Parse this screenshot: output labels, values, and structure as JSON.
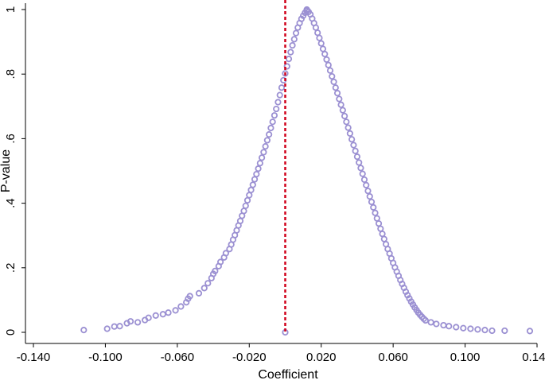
{
  "chart_data": {
    "type": "scatter",
    "xlabel": "Coefficient",
    "ylabel": "P-value",
    "xlim": [
      -0.14,
      0.14
    ],
    "ylim": [
      0,
      1
    ],
    "x_ticks": [
      -0.14,
      -0.1,
      -0.06,
      -0.02,
      0.02,
      0.06,
      0.1,
      0.14
    ],
    "x_tick_labels": [
      "-0.140",
      "-0.100",
      "-0.060",
      "-0.020",
      "0.020",
      "0.060",
      "0.100",
      "0.140"
    ],
    "y_ticks": [
      0,
      0.2,
      0.4,
      0.6,
      0.8,
      1
    ],
    "y_tick_labels": [
      "0",
      ".2",
      ".4",
      ".6",
      ".8",
      "1"
    ],
    "reference_line_x": 0.0,
    "reference_line_style": "dashed",
    "grid": false,
    "colors": {
      "marker": "#9B90D2",
      "reference_line": "#D0021B",
      "axis": "#000000"
    },
    "series": [
      {
        "points": [
          [
            -0.112,
            0.007
          ],
          [
            -0.099,
            0.011
          ],
          [
            -0.095,
            0.018
          ],
          [
            -0.092,
            0.019
          ],
          [
            -0.088,
            0.028
          ],
          [
            -0.086,
            0.034
          ],
          [
            -0.082,
            0.031
          ],
          [
            -0.078,
            0.038
          ],
          [
            -0.076,
            0.045
          ],
          [
            -0.072,
            0.052
          ],
          [
            -0.068,
            0.056
          ],
          [
            -0.065,
            0.061
          ],
          [
            -0.061,
            0.068
          ],
          [
            -0.058,
            0.08
          ],
          [
            -0.055,
            0.093
          ],
          [
            -0.054,
            0.104
          ],
          [
            -0.053,
            0.112
          ],
          [
            -0.048,
            0.121
          ],
          [
            -0.045,
            0.137
          ],
          [
            -0.043,
            0.152
          ],
          [
            -0.041,
            0.168
          ],
          [
            -0.04,
            0.181
          ],
          [
            -0.039,
            0.19
          ],
          [
            -0.037,
            0.205
          ],
          [
            -0.036,
            0.218
          ],
          [
            -0.034,
            0.232
          ],
          [
            -0.033,
            0.245
          ],
          [
            -0.031,
            0.258
          ],
          [
            -0.03,
            0.272
          ],
          [
            -0.029,
            0.287
          ],
          [
            -0.028,
            0.301
          ],
          [
            -0.027,
            0.316
          ],
          [
            -0.026,
            0.331
          ],
          [
            -0.025,
            0.345
          ],
          [
            -0.024,
            0.361
          ],
          [
            -0.023,
            0.376
          ],
          [
            -0.022,
            0.392
          ],
          [
            -0.021,
            0.409
          ],
          [
            -0.02,
            0.425
          ],
          [
            -0.019,
            0.441
          ],
          [
            -0.018,
            0.457
          ],
          [
            -0.017,
            0.474
          ],
          [
            -0.016,
            0.49
          ],
          [
            -0.015,
            0.507
          ],
          [
            -0.014,
            0.524
          ],
          [
            -0.013,
            0.541
          ],
          [
            -0.012,
            0.558
          ],
          [
            -0.011,
            0.576
          ],
          [
            -0.01,
            0.595
          ],
          [
            -0.009,
            0.613
          ],
          [
            -0.008,
            0.633
          ],
          [
            -0.007,
            0.652
          ],
          [
            -0.006,
            0.672
          ],
          [
            -0.005,
            0.692
          ],
          [
            -0.004,
            0.713
          ],
          [
            -0.003,
            0.735
          ],
          [
            -0.002,
            0.758
          ],
          [
            -0.001,
            0.781
          ],
          [
            0.0,
            0.802
          ],
          [
            0.001,
            0.824
          ],
          [
            0.002,
            0.847
          ],
          [
            0.003,
            0.868
          ],
          [
            0.004,
            0.889
          ],
          [
            0.005,
            0.908
          ],
          [
            0.006,
            0.927
          ],
          [
            0.007,
            0.944
          ],
          [
            0.008,
            0.958
          ],
          [
            0.009,
            0.971
          ],
          [
            0.01,
            0.981
          ],
          [
            0.011,
            0.99
          ],
          [
            0.012,
            0.996
          ],
          [
            0.012,
            1.0
          ],
          [
            0.013,
            0.993
          ],
          [
            0.014,
            0.985
          ],
          [
            0.015,
            0.972
          ],
          [
            0.016,
            0.958
          ],
          [
            0.017,
            0.944
          ],
          [
            0.018,
            0.928
          ],
          [
            0.019,
            0.912
          ],
          [
            0.02,
            0.895
          ],
          [
            0.021,
            0.878
          ],
          [
            0.022,
            0.862
          ],
          [
            0.023,
            0.845
          ],
          [
            0.024,
            0.828
          ],
          [
            0.025,
            0.811
          ],
          [
            0.026,
            0.793
          ],
          [
            0.027,
            0.776
          ],
          [
            0.028,
            0.758
          ],
          [
            0.029,
            0.741
          ],
          [
            0.03,
            0.723
          ],
          [
            0.031,
            0.705
          ],
          [
            0.032,
            0.688
          ],
          [
            0.033,
            0.67
          ],
          [
            0.034,
            0.652
          ],
          [
            0.035,
            0.634
          ],
          [
            0.036,
            0.616
          ],
          [
            0.037,
            0.598
          ],
          [
            0.038,
            0.58
          ],
          [
            0.039,
            0.562
          ],
          [
            0.04,
            0.544
          ],
          [
            0.041,
            0.526
          ],
          [
            0.042,
            0.509
          ],
          [
            0.043,
            0.491
          ],
          [
            0.044,
            0.473
          ],
          [
            0.045,
            0.456
          ],
          [
            0.046,
            0.438
          ],
          [
            0.047,
            0.421
          ],
          [
            0.048,
            0.404
          ],
          [
            0.049,
            0.387
          ],
          [
            0.05,
            0.37
          ],
          [
            0.051,
            0.353
          ],
          [
            0.052,
            0.337
          ],
          [
            0.053,
            0.321
          ],
          [
            0.054,
            0.305
          ],
          [
            0.055,
            0.289
          ],
          [
            0.056,
            0.273
          ],
          [
            0.057,
            0.258
          ],
          [
            0.058,
            0.244
          ],
          [
            0.059,
            0.229
          ],
          [
            0.06,
            0.215
          ],
          [
            0.061,
            0.201
          ],
          [
            0.062,
            0.188
          ],
          [
            0.063,
            0.175
          ],
          [
            0.064,
            0.162
          ],
          [
            0.065,
            0.15
          ],
          [
            0.066,
            0.138
          ],
          [
            0.067,
            0.126
          ],
          [
            0.068,
            0.115
          ],
          [
            0.069,
            0.105
          ],
          [
            0.07,
            0.095
          ],
          [
            0.071,
            0.086
          ],
          [
            0.072,
            0.077
          ],
          [
            0.073,
            0.069
          ],
          [
            0.074,
            0.061
          ],
          [
            0.075,
            0.054
          ],
          [
            0.076,
            0.048
          ],
          [
            0.077,
            0.042
          ],
          [
            0.078,
            0.037
          ],
          [
            0.081,
            0.031
          ],
          [
            0.084,
            0.026
          ],
          [
            0.088,
            0.022
          ],
          [
            0.091,
            0.019
          ],
          [
            0.095,
            0.016
          ],
          [
            0.099,
            0.013
          ],
          [
            0.103,
            0.011
          ],
          [
            0.107,
            0.009
          ],
          [
            0.111,
            0.007
          ],
          [
            0.115,
            0.005
          ],
          [
            0.122,
            0.005
          ],
          [
            0.136,
            0.004
          ],
          [
            0.0,
            0.0
          ]
        ]
      }
    ]
  }
}
